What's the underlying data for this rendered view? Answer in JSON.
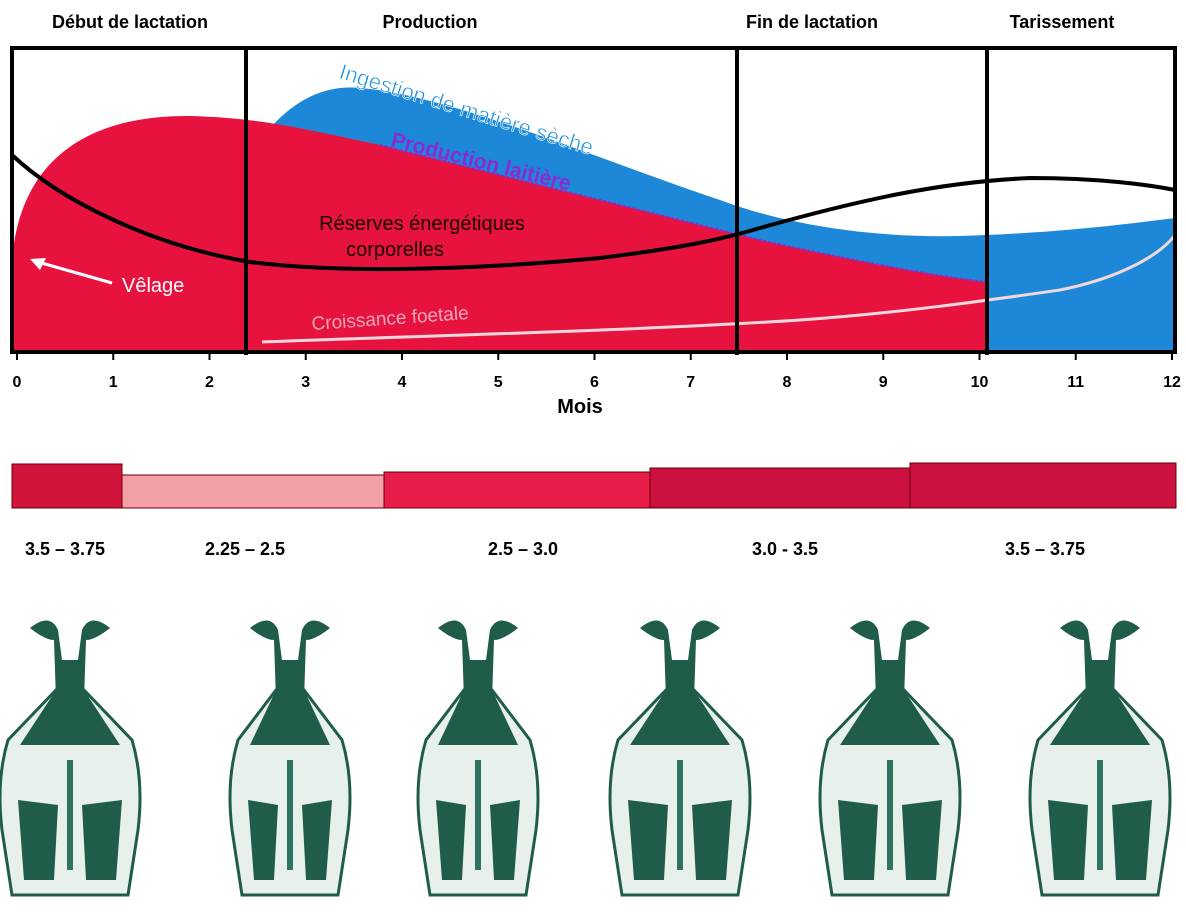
{
  "phases": [
    "Début de lactation",
    "Production",
    "Fin de lactation",
    "Tarissement"
  ],
  "axis": {
    "label": "Mois",
    "ticks": [
      0,
      1,
      2,
      3,
      4,
      5,
      6,
      7,
      8,
      9,
      10,
      11,
      12
    ]
  },
  "curves": {
    "ingestion": "Ingestion de matière sèche",
    "milk": "Production laitière",
    "reserves": [
      "Réserves énergétiques",
      "corporelles"
    ],
    "calving": "Vêlage",
    "foetal": "Croissance foetale"
  },
  "scores": [
    "3.5 – 3.75",
    "2.25 – 2.5",
    "2.5 – 3.0",
    "3.0 - 3.5",
    "3.5 – 3.75"
  ]
}
